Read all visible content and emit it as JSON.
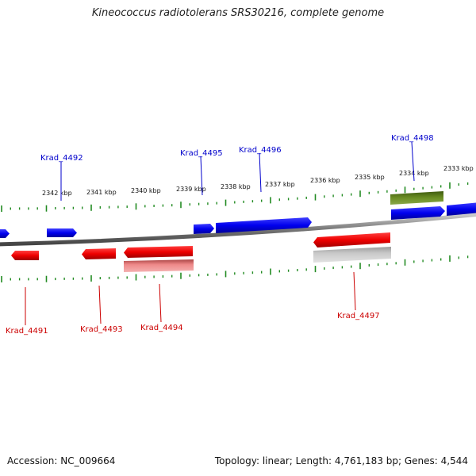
{
  "title": "Kineococcus radiotolerans SRS30216, complete genome",
  "footer": {
    "accession": "Accession: NC_009664",
    "summary": "Topology: linear; Length: 4,761,183 bp; Genes: 4,544"
  },
  "colors": {
    "forward_gene": "#0000ee",
    "reverse_gene": "#ee0000",
    "pseudogene": "#bbbbbb",
    "rna_gene": "#6b8e23",
    "pseudo_reverse": "#ee8888",
    "ticks": "#228b22",
    "backbone": "#888888"
  },
  "scale": {
    "unit": "kbp",
    "ticks": [
      "2342 kbp",
      "2341 kbp",
      "2340 kbp",
      "2339 kbp",
      "2338 kbp",
      "2337 kbp",
      "2336 kbp",
      "2335 kbp",
      "2334 kbp",
      "2333 kbp"
    ]
  },
  "genes_top": [
    "Krad_4492",
    "Krad_4495",
    "Krad_4496",
    "Krad_4498"
  ],
  "genes_bottom": [
    "Krad_4491",
    "Krad_4493",
    "Krad_4494",
    "Krad_4497"
  ]
}
